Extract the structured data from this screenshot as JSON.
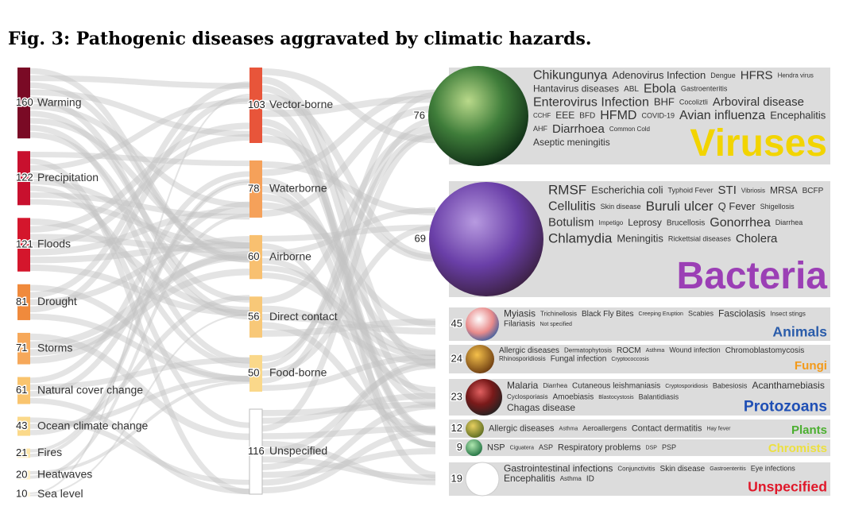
{
  "title": "Fig. 3: Pathogenic diseases aggravated by climatic hazards.",
  "chart_data": {
    "type": "sankey",
    "hazards": [
      {
        "name": "Warming",
        "value": 160,
        "color": "#7a0a25"
      },
      {
        "name": "Precipitation",
        "value": 122,
        "color": "#c8102e"
      },
      {
        "name": "Floods",
        "value": 121,
        "color": "#d4162c"
      },
      {
        "name": "Drought",
        "value": 81,
        "color": "#f08a3c"
      },
      {
        "name": "Storms",
        "value": 71,
        "color": "#f6a85a"
      },
      {
        "name": "Natural cover change",
        "value": 61,
        "color": "#f9c46e"
      },
      {
        "name": "Ocean climate change",
        "value": 43,
        "color": "#fbd98a"
      },
      {
        "name": "Fires",
        "value": 21,
        "color": "#fde5a8"
      },
      {
        "name": "Heatwaves",
        "value": 20,
        "color": "#feefc5"
      },
      {
        "name": "Sea level",
        "value": 10,
        "color": "#fff6dc"
      }
    ],
    "transmission": [
      {
        "name": "Vector-borne",
        "value": 103,
        "color": "#e8553a"
      },
      {
        "name": "Waterborne",
        "value": 78,
        "color": "#f5a15a"
      },
      {
        "name": "Airborne",
        "value": 60,
        "color": "#f8c070"
      },
      {
        "name": "Direct contact",
        "value": 56,
        "color": "#f8c878"
      },
      {
        "name": "Food-borne",
        "value": 50,
        "color": "#fad88a"
      },
      {
        "name": "Unspecified",
        "value": 116,
        "color": "#ffffff"
      }
    ],
    "pathogens": [
      {
        "name": "Viruses",
        "value": 76,
        "color": "#f2d400",
        "words": [
          "Chikungunya",
          "Adenovirus Infection",
          "Dengue",
          "HFRS",
          "Hendra virus",
          "Hantavirus diseases",
          "ABL",
          "Ebola",
          "Gastroenteritis",
          "Enterovirus Infection",
          "BHF",
          "Cocoliztli",
          "Arboviral disease",
          "CCHF",
          "EEE",
          "BFD",
          "HFMD",
          "COVID-19",
          "Avian influenza",
          "Encephalitis",
          "AHF",
          "Diarrhoea",
          "Common Cold",
          "Aseptic meningitis"
        ]
      },
      {
        "name": "Bacteria",
        "value": 69,
        "color": "#9b3fb5",
        "words": [
          "RMSF",
          "Escherichia coli",
          "Typhoid Fever",
          "STI",
          "Vibriosis",
          "MRSA",
          "BCFP",
          "Cellulitis",
          "Skin disease",
          "Buruli ulcer",
          "Q Fever",
          "Shigellosis",
          "Botulism",
          "Impetigo",
          "Leprosy",
          "Brucellosis",
          "Gonorrhea",
          "Diarrhea",
          "Chlamydia",
          "Meningitis",
          "Rickettsial diseases",
          "Cholera"
        ]
      },
      {
        "name": "Animals",
        "value": 45,
        "color": "#2a5caa",
        "words": [
          "Myiasis",
          "Trichinellosis",
          "Black Fly Bites",
          "Creeping Eruption",
          "Scabies",
          "Fasciolasis",
          "Insect stings",
          "Filariasis",
          "Not specified"
        ]
      },
      {
        "name": "Fungi",
        "value": 24,
        "color": "#f39a1a",
        "words": [
          "Allergic diseases",
          "Dermatophytosis",
          "ROCM",
          "Asthma",
          "Wound infection",
          "Chromoblastomycosis",
          "Rhinosporidiosis",
          "Fungal infection",
          "Cryptococcosis"
        ]
      },
      {
        "name": "Protozoans",
        "value": 23,
        "color": "#1f4fb5",
        "words": [
          "Malaria",
          "Diarrhea",
          "Cutaneous leishmaniasis",
          "Cryptosporidiosis",
          "Babesiosis",
          "Acanthamebiasis",
          "Cyclosporiasis",
          "Amoebiasis",
          "Blastocystosis",
          "Balantidiasis",
          "Chagas disease"
        ]
      },
      {
        "name": "Plants",
        "value": 12,
        "color": "#4caf30",
        "words": [
          "Allergic diseases",
          "Asthma",
          "Aeroallergens",
          "Contact dermatitis",
          "Hay fever"
        ]
      },
      {
        "name": "Chromists",
        "value": 9,
        "color": "#ece040",
        "words": [
          "NSP",
          "Ciguatera",
          "ASP",
          "Respiratory problems",
          "DSP",
          "PSP"
        ]
      },
      {
        "name": "Unspecified",
        "value": 19,
        "color": "#e0182a",
        "words": [
          "Gastrointestinal infections",
          "Conjunctivitis",
          "Skin disease",
          "Gastroenteritis",
          "Eye infections",
          "Encephalitis",
          "Asthma",
          "ID"
        ]
      }
    ]
  }
}
